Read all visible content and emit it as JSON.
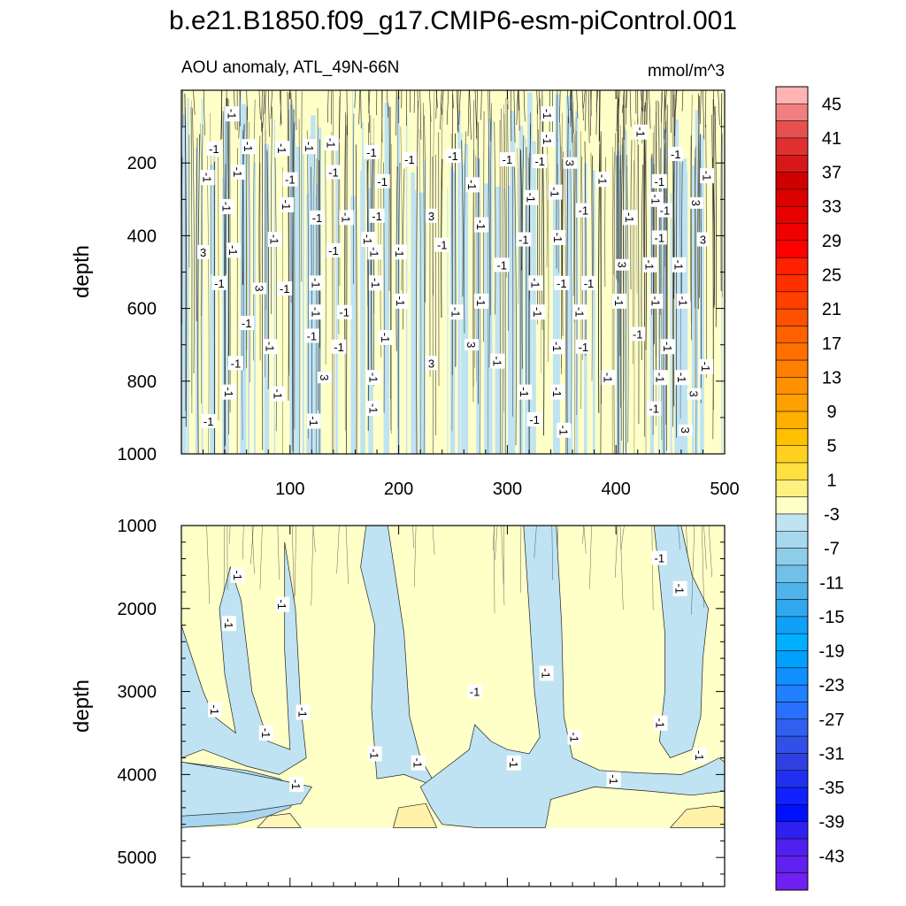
{
  "title": "b.e21.B1850.f09_g17.CMIP6-esm-piControl.001",
  "colors": {
    "positive_fill": "#ffffc8",
    "negative_fill": "#bfe3f2",
    "contour_line": "#222222",
    "frame": "#000000"
  },
  "chart_data": [
    {
      "panel": "upper",
      "type": "heatmap",
      "subtitle_left": "AOU anomaly, ATL_49N-66N",
      "subtitle_right": "mmol/m^3",
      "xlabel": "",
      "ylabel": "depth",
      "xlim": [
        0,
        500
      ],
      "ylim": [
        1000,
        0
      ],
      "xticks": [
        "100",
        "200",
        "300",
        "400",
        "500"
      ],
      "yticks": [
        "200",
        "400",
        "600",
        "800",
        "1000"
      ],
      "xtick_values": [
        100,
        200,
        300,
        400,
        500
      ],
      "ytick_values": [
        200,
        400,
        600,
        800,
        1000
      ],
      "contour_labels": [
        {
          "text": "-1",
          "x": 47,
          "y": 65
        },
        {
          "text": "-1",
          "x": 30,
          "y": 160
        },
        {
          "text": "-1",
          "x": 62,
          "y": 155
        },
        {
          "text": "-1",
          "x": 93,
          "y": 160
        },
        {
          "text": "-1",
          "x": 118,
          "y": 155
        },
        {
          "text": "-1",
          "x": 138,
          "y": 145
        },
        {
          "text": "-1",
          "x": 175,
          "y": 170
        },
        {
          "text": "-1",
          "x": 210,
          "y": 190
        },
        {
          "text": "-1",
          "x": 250,
          "y": 180
        },
        {
          "text": "-1",
          "x": 300,
          "y": 190
        },
        {
          "text": "-1",
          "x": 337,
          "y": 65
        },
        {
          "text": "-1",
          "x": 337,
          "y": 135
        },
        {
          "text": "-1",
          "x": 330,
          "y": 195
        },
        {
          "text": "3",
          "x": 358,
          "y": 200
        },
        {
          "text": "-1",
          "x": 423,
          "y": 115
        },
        {
          "text": "-1",
          "x": 455,
          "y": 175
        },
        {
          "text": "-1",
          "x": 24,
          "y": 240
        },
        {
          "text": "-1",
          "x": 52,
          "y": 225
        },
        {
          "text": "-1",
          "x": 100,
          "y": 245
        },
        {
          "text": "-1",
          "x": 140,
          "y": 225
        },
        {
          "text": "-1",
          "x": 185,
          "y": 250
        },
        {
          "text": "-1",
          "x": 268,
          "y": 260
        },
        {
          "text": "-1",
          "x": 388,
          "y": 245
        },
        {
          "text": "-1",
          "x": 440,
          "y": 250
        },
        {
          "text": "-1",
          "x": 484,
          "y": 235
        },
        {
          "text": "-1",
          "x": 322,
          "y": 295
        },
        {
          "text": "-1",
          "x": 344,
          "y": 280
        },
        {
          "text": "-1",
          "x": 370,
          "y": 330
        },
        {
          "text": "-1",
          "x": 437,
          "y": 300
        },
        {
          "text": "3",
          "x": 474,
          "y": 310
        },
        {
          "text": "-1",
          "x": 42,
          "y": 320
        },
        {
          "text": "-1",
          "x": 97,
          "y": 315
        },
        {
          "text": "-1",
          "x": 125,
          "y": 350
        },
        {
          "text": "-1",
          "x": 152,
          "y": 350
        },
        {
          "text": "-1",
          "x": 180,
          "y": 345
        },
        {
          "text": "3",
          "x": 230,
          "y": 345
        },
        {
          "text": "-1",
          "x": 276,
          "y": 370
        },
        {
          "text": "-1",
          "x": 413,
          "y": 350
        },
        {
          "text": "-1",
          "x": 445,
          "y": 330
        },
        {
          "text": "-1",
          "x": 86,
          "y": 410
        },
        {
          "text": "-1",
          "x": 172,
          "y": 410
        },
        {
          "text": "-1",
          "x": 240,
          "y": 425
        },
        {
          "text": "-1",
          "x": 315,
          "y": 410
        },
        {
          "text": "-1",
          "x": 347,
          "y": 405
        },
        {
          "text": "-1",
          "x": 440,
          "y": 405
        },
        {
          "text": "3",
          "x": 480,
          "y": 410
        },
        {
          "text": "3",
          "x": 20,
          "y": 445
        },
        {
          "text": "-1",
          "x": 48,
          "y": 440
        },
        {
          "text": "-1",
          "x": 140,
          "y": 440
        },
        {
          "text": "-1",
          "x": 178,
          "y": 445
        },
        {
          "text": "-1",
          "x": 201,
          "y": 445
        },
        {
          "text": "-1",
          "x": 295,
          "y": 480
        },
        {
          "text": "3",
          "x": 406,
          "y": 480
        },
        {
          "text": "-1",
          "x": 431,
          "y": 480
        },
        {
          "text": "-1",
          "x": 458,
          "y": 480
        },
        {
          "text": "-1",
          "x": 35,
          "y": 530
        },
        {
          "text": "3",
          "x": 72,
          "y": 545
        },
        {
          "text": "-1",
          "x": 95,
          "y": 545
        },
        {
          "text": "-1",
          "x": 124,
          "y": 530
        },
        {
          "text": "-1",
          "x": 179,
          "y": 530
        },
        {
          "text": "-1",
          "x": 326,
          "y": 530
        },
        {
          "text": "-1",
          "x": 350,
          "y": 530
        },
        {
          "text": "-1",
          "x": 375,
          "y": 530
        },
        {
          "text": "-1",
          "x": 403,
          "y": 580
        },
        {
          "text": "-1",
          "x": 437,
          "y": 580
        },
        {
          "text": "-1",
          "x": 462,
          "y": 580
        },
        {
          "text": "-1",
          "x": 202,
          "y": 580
        },
        {
          "text": "-1",
          "x": 276,
          "y": 580
        },
        {
          "text": "-1",
          "x": 124,
          "y": 610
        },
        {
          "text": "-1",
          "x": 150,
          "y": 610
        },
        {
          "text": "-1",
          "x": 253,
          "y": 610
        },
        {
          "text": "-1",
          "x": 328,
          "y": 610
        },
        {
          "text": "-1",
          "x": 367,
          "y": 610
        },
        {
          "text": "-1",
          "x": 60,
          "y": 640
        },
        {
          "text": "-1",
          "x": 120,
          "y": 675
        },
        {
          "text": "-1",
          "x": 188,
          "y": 680
        },
        {
          "text": "-1",
          "x": 420,
          "y": 670
        },
        {
          "text": "3",
          "x": 267,
          "y": 700
        },
        {
          "text": "-1",
          "x": 82,
          "y": 705
        },
        {
          "text": "-1",
          "x": 145,
          "y": 705
        },
        {
          "text": "-1",
          "x": 346,
          "y": 705
        },
        {
          "text": "-1",
          "x": 370,
          "y": 705
        },
        {
          "text": "-1",
          "x": 448,
          "y": 705
        },
        {
          "text": "-1",
          "x": 50,
          "y": 750
        },
        {
          "text": "3",
          "x": 230,
          "y": 750
        },
        {
          "text": "-1",
          "x": 291,
          "y": 745
        },
        {
          "text": "-1",
          "x": 483,
          "y": 760
        },
        {
          "text": "3",
          "x": 132,
          "y": 790
        },
        {
          "text": "-1",
          "x": 177,
          "y": 790
        },
        {
          "text": "-1",
          "x": 393,
          "y": 790
        },
        {
          "text": "-1",
          "x": 441,
          "y": 790
        },
        {
          "text": "-1",
          "x": 461,
          "y": 790
        },
        {
          "text": "-1",
          "x": 44,
          "y": 830
        },
        {
          "text": "-1",
          "x": 89,
          "y": 835
        },
        {
          "text": "-1",
          "x": 316,
          "y": 830
        },
        {
          "text": "-1",
          "x": 346,
          "y": 830
        },
        {
          "text": "3",
          "x": 472,
          "y": 835
        },
        {
          "text": "-1",
          "x": 177,
          "y": 875
        },
        {
          "text": "-1",
          "x": 435,
          "y": 875
        },
        {
          "text": "-1",
          "x": 25,
          "y": 910
        },
        {
          "text": "-1",
          "x": 122,
          "y": 910
        },
        {
          "text": "-1",
          "x": 325,
          "y": 905
        },
        {
          "text": "-1",
          "x": 352,
          "y": 935
        },
        {
          "text": "3",
          "x": 464,
          "y": 935
        }
      ]
    },
    {
      "panel": "lower",
      "type": "heatmap",
      "xlabel": "",
      "ylabel": "depth",
      "xlim": [
        0,
        500
      ],
      "ylim": [
        5350,
        1000
      ],
      "fill_bottom_depth": 4640,
      "yticks": [
        "1000",
        "2000",
        "3000",
        "4000",
        "5000"
      ],
      "ytick_values": [
        1000,
        2000,
        3000,
        4000,
        5000
      ],
      "contour_labels": [
        {
          "text": "-1",
          "x": 52,
          "y": 1600
        },
        {
          "text": "-1",
          "x": 93,
          "y": 1950
        },
        {
          "text": "-1",
          "x": 44,
          "y": 2180
        },
        {
          "text": "-1",
          "x": 440,
          "y": 1390
        },
        {
          "text": "-1",
          "x": 459,
          "y": 1760
        },
        {
          "text": "-1",
          "x": 336,
          "y": 2780
        },
        {
          "text": "-1",
          "x": 270,
          "y": 3000
        },
        {
          "text": "-1",
          "x": 31,
          "y": 3220
        },
        {
          "text": "-1",
          "x": 112,
          "y": 3250
        },
        {
          "text": "-1",
          "x": 78,
          "y": 3500
        },
        {
          "text": "-1",
          "x": 362,
          "y": 3550
        },
        {
          "text": "-1",
          "x": 441,
          "y": 3380
        },
        {
          "text": "-1",
          "x": 178,
          "y": 3750
        },
        {
          "text": "-1",
          "x": 218,
          "y": 3860
        },
        {
          "text": "-1",
          "x": 306,
          "y": 3860
        },
        {
          "text": "-1",
          "x": 477,
          "y": 3770
        },
        {
          "text": "-1",
          "x": 398,
          "y": 4060
        },
        {
          "text": "-1",
          "x": 106,
          "y": 4120
        }
      ]
    },
    {
      "panel": "colorbar",
      "type": "colorbar",
      "labels": [
        "45",
        "41",
        "37",
        "33",
        "29",
        "25",
        "21",
        "17",
        "13",
        "9",
        "5",
        "1",
        "-3",
        "-7",
        "-11",
        "-15",
        "-19",
        "-23",
        "-27",
        "-31",
        "-35",
        "-39",
        "-43"
      ],
      "levels": [
        47,
        45,
        43,
        41,
        39,
        37,
        35,
        33,
        31,
        29,
        27,
        25,
        23,
        21,
        19,
        17,
        15,
        13,
        11,
        9,
        7,
        5,
        3,
        1,
        -1,
        -3,
        -5,
        -7,
        -9,
        -11,
        -13,
        -15,
        -17,
        -19,
        -21,
        -23,
        -25,
        -27,
        -29,
        -31,
        -33,
        -35,
        -37,
        -39,
        -41,
        -43,
        -45,
        -47
      ],
      "colors": [
        "#ffb4b4",
        "#f08080",
        "#e85050",
        "#e03030",
        "#d81818",
        "#d00000",
        "#dd0000",
        "#e80000",
        "#f00000",
        "#ff0000",
        "#ff2000",
        "#ff3000",
        "#ff4000",
        "#ff5000",
        "#ff6000",
        "#ff7000",
        "#ff8000",
        "#ff9000",
        "#ffa000",
        "#ffb000",
        "#ffc000",
        "#ffd020",
        "#ffe040",
        "#fff080",
        "#ffffc8",
        "#bfe3f2",
        "#a8d8ef",
        "#8ecde9",
        "#70c0e8",
        "#50b4ea",
        "#30a8f0",
        "#10a0f8",
        "#00b0ff",
        "#00a0ff",
        "#1090ff",
        "#2080ff",
        "#2a70ff",
        "#3060f0",
        "#3050e8",
        "#3040e0",
        "#2030f0",
        "#1020ff",
        "#0010ff",
        "#3020f0",
        "#5020f0",
        "#6020f0",
        "#7020f0"
      ]
    }
  ]
}
